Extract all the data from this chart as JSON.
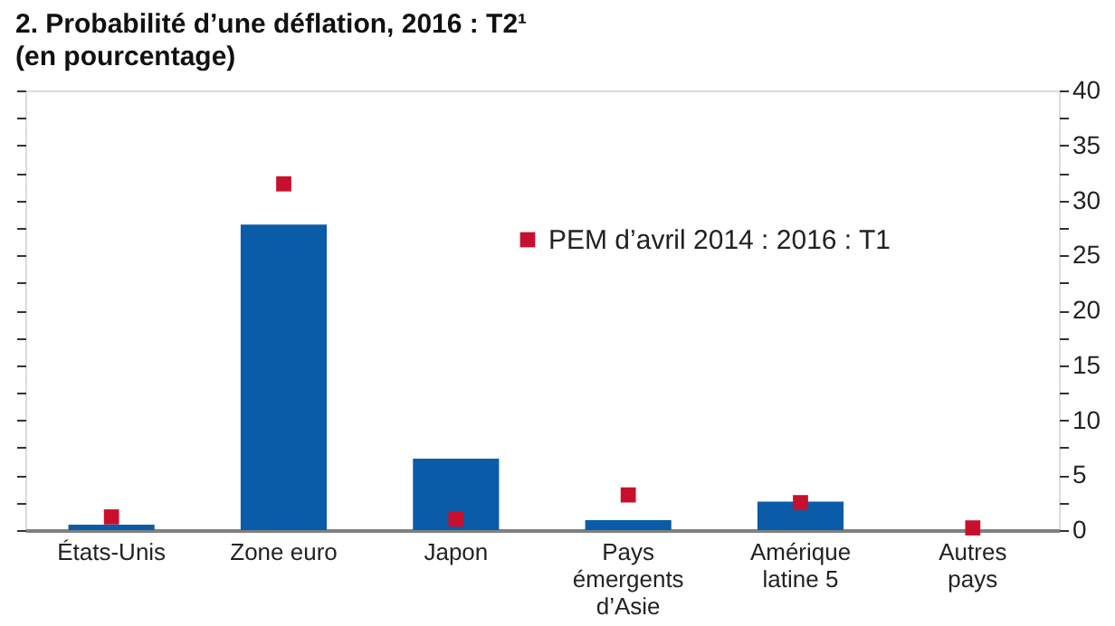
{
  "chart_data": {
    "type": "bar",
    "title": "2. Probabilité d’une déflation, 2016 : T2¹",
    "subtitle": "(en pourcentage)",
    "categories": [
      "États-Unis",
      "Zone euro",
      "Japon",
      "Pays\némergents\nd’Asie",
      "Amérique\nlatine 5",
      "Autres\npays"
    ],
    "series": [
      {
        "color": "#0a5ca8",
        "values": [
          0.5,
          27.8,
          6.5,
          0.9,
          2.6,
          0
        ]
      },
      {
        "type": "scatter",
        "name": "PEM d’avril 2014 : 2016 : T1",
        "color": "#c8102e",
        "marker": "square",
        "values": [
          1.2,
          31.5,
          1.0,
          3.2,
          2.5,
          0.2
        ]
      }
    ],
    "ylim": [
      0,
      40
    ],
    "yticks": [
      0,
      {
        "value": 2.5,
        "label": null
      },
      5,
      {
        "value": 7.5,
        "label": null
      },
      10,
      {
        "value": 12.5,
        "label": null
      },
      15,
      {
        "value": 17.5,
        "label": null
      },
      20,
      {
        "value": 22.5,
        "label": null
      },
      25,
      {
        "value": 27.5,
        "label": null
      },
      30,
      {
        "value": 32.5,
        "label": null
      },
      35,
      {
        "value": 37.5,
        "label": null
      },
      40
    ],
    "grid": false,
    "legend": "top right"
  }
}
